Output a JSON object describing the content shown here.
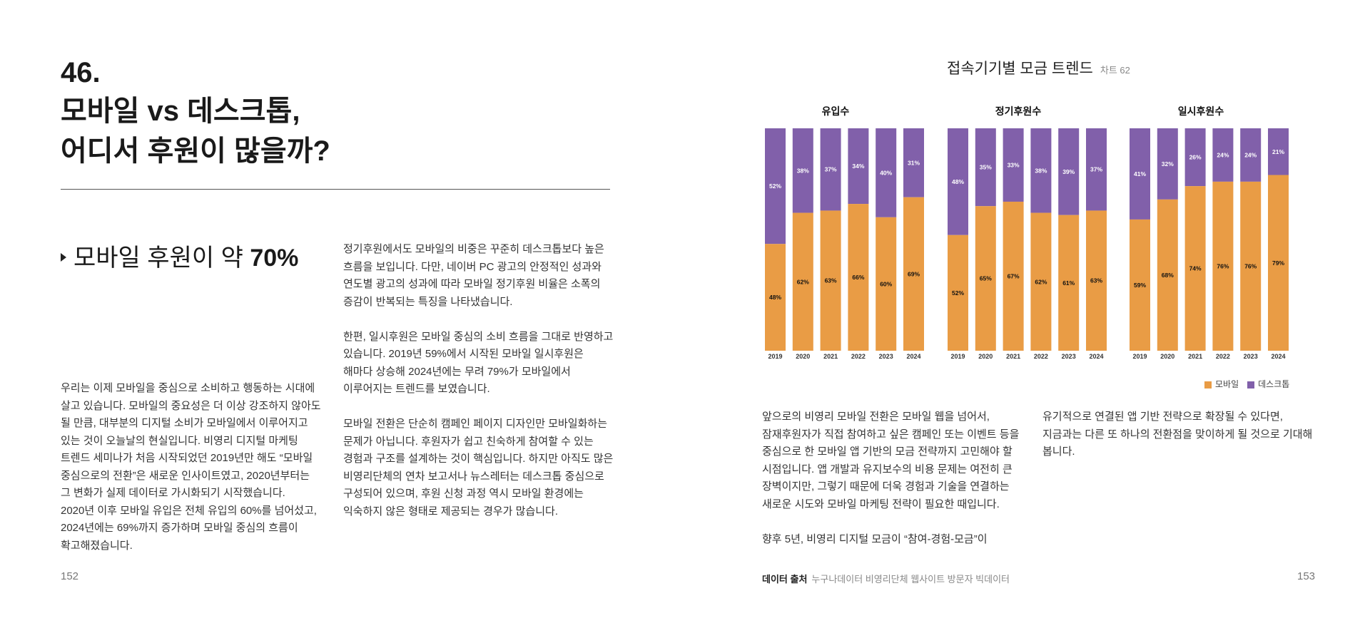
{
  "left_page": {
    "number_label": "46.",
    "title_lines": [
      "모바일 vs 데스크톱,",
      "어디서 후원이 많을까?"
    ],
    "subheading_prefix": "모바일 후원이 약 ",
    "subheading_highlight": "70%",
    "column1": "우리는 이제 모바일을 중심으로 소비하고 행동하는 시대에\n살고 있습니다. 모바일의 중요성은 더 이상 강조하지 않아도\n될 만큼, 대부분의 디지털 소비가 모바일에서 이루어지고\n있는 것이 오늘날의 현실입니다. 비영리 디지털 마케팅\n트렌드 세미나가 처음 시작되었던 2019년만 해도 “모바일\n중심으로의 전환”은 새로운 인사이트였고, 2020년부터는\n그 변화가 실제 데이터로 가시화되기 시작했습니다.\n2020년 이후 모바일 유입은 전체 유입의 60%를 넘어섰고,\n2024년에는 69%까지 증가하며 모바일 중심의 흐름이\n확고해졌습니다.",
    "column2": "정기후원에서도 모바일의 비중은 꾸준히 데스크톱보다 높은\n흐름을 보입니다. 다만, 네이버 PC 광고의 안정적인 성과와\n연도별 광고의 성과에 따라 모바일 정기후원 비율은 소폭의\n증감이 반복되는 특징을 나타냈습니다.\n\n한편, 일시후원은 모바일 중심의 소비 흐름을 그대로 반영하고\n있습니다. 2019년 59%에서 시작된 모바일 일시후원은\n해마다 상승해 2024년에는 무려 79%가 모바일에서\n이루어지는 트렌드를 보였습니다.\n\n모바일 전환은 단순히 캠페인 페이지 디자인만 모바일화하는\n문제가 아닙니다. 후원자가 쉽고 친숙하게 참여할 수 있는\n경험과 구조를 설계하는 것이 핵심입니다. 하지만 아직도 많은\n비영리단체의 연차 보고서나 뉴스레터는 데스크톱 중심으로\n구성되어 있으며, 후원 신청 과정 역시 모바일 환경에는\n익숙하지 않은 형태로 제공되는 경우가 많습니다.",
    "page_number": "152"
  },
  "right_page": {
    "column1": "앞으로의 비영리 모바일 전환은 모바일 웹을 넘어서,\n잠재후원자가 직접 참여하고 싶은 캠페인 또는 이벤트 등을\n중심으로 한 모바일 앱 기반의 모금 전략까지 고민해야 할\n시점입니다. 앱 개발과 유지보수의 비용 문제는 여전히 큰\n장벽이지만, 그렇기 때문에 더욱 경험과 기술을 연결하는\n새로운 시도와 모바일 마케팅 전략이 필요한 때입니다.\n\n향후 5년, 비영리 디지털 모금이 “참여-경험-모금”이",
    "column2": "유기적으로 연결된 앱 기반 전략으로 확장될 수 있다면,\n지금과는 다른 또 하나의 전환점을 맞이하게 될 것으로 기대해\n봅니다.",
    "source_label": "데이터 출처",
    "source_text": "누구나데이터 비영리단체 웹사이트 방문자 빅데이터",
    "page_number": "153"
  },
  "colors": {
    "mobile": "#E99C45",
    "desktop": "#8160AA"
  },
  "chart_data": {
    "type": "bar",
    "stacked": true,
    "title": "접속기기별 모금 트렌드",
    "chart_number": "차트 62",
    "legend": [
      "모바일",
      "데스크톱"
    ],
    "legend_placement": "bottom-right",
    "categories": [
      "2019",
      "2020",
      "2021",
      "2022",
      "2023",
      "2024"
    ],
    "ylim": [
      0,
      100
    ],
    "panels": [
      {
        "title": "유입수",
        "series": [
          {
            "name": "모바일",
            "values": [
              48,
              62,
              63,
              66,
              60,
              69
            ]
          },
          {
            "name": "데스크톱",
            "values": [
              52,
              38,
              37,
              34,
              40,
              31
            ]
          }
        ]
      },
      {
        "title": "정기후원수",
        "series": [
          {
            "name": "모바일",
            "values": [
              52,
              65,
              67,
              62,
              61,
              63
            ]
          },
          {
            "name": "데스크톱",
            "values": [
              48,
              35,
              33,
              38,
              39,
              37
            ]
          }
        ]
      },
      {
        "title": "일시후원수",
        "series": [
          {
            "name": "모바일",
            "values": [
              59,
              68,
              74,
              76,
              76,
              79
            ]
          },
          {
            "name": "데스크톱",
            "values": [
              41,
              32,
              26,
              24,
              24,
              21
            ]
          }
        ]
      }
    ]
  }
}
